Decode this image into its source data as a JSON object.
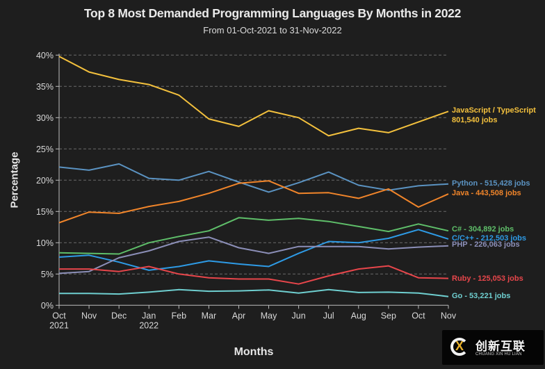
{
  "chart_data": {
    "type": "line",
    "title": "Top 8 Most Demanded Programming Languages By Months in 2022",
    "subtitle": "From 01-Oct-2021 to 31-Nov-2022",
    "xlabel": "Months",
    "ylabel": "Percentage",
    "ylim": [
      0,
      40
    ],
    "yticks": [
      0,
      5,
      10,
      15,
      20,
      25,
      30,
      35,
      40
    ],
    "ytick_labels": [
      "0%",
      "5%",
      "10%",
      "15%",
      "20%",
      "25%",
      "30%",
      "35%",
      "40%"
    ],
    "grid": "horizontal-dashed",
    "categories": [
      "Oct",
      "Nov",
      "Dec",
      "Jan",
      "Feb",
      "Mar",
      "Apr",
      "May",
      "Jun",
      "Jul",
      "Aug",
      "Sep",
      "Oct",
      "Nov"
    ],
    "category_sublabels": [
      "2021",
      "",
      "",
      "2022",
      "",
      "",
      "",
      "",
      "",
      "",
      "",
      "",
      "",
      ""
    ],
    "legend": "direct-labels-right",
    "series": [
      {
        "name": "JavaScript / TypeScript",
        "label": "JavaScript / TypeScript",
        "label2": "801,540 jobs",
        "color": "#f4c13d",
        "values": [
          39.8,
          37.3,
          36.1,
          35.3,
          33.6,
          29.8,
          28.6,
          31.1,
          30.0,
          27.1,
          28.3,
          27.6,
          29.3,
          31.0
        ]
      },
      {
        "name": "Python",
        "label": "Python - 515,428 jobs",
        "color": "#5b93c2",
        "values": [
          22.1,
          21.6,
          22.6,
          20.3,
          20.0,
          21.4,
          19.7,
          18.1,
          19.6,
          21.3,
          19.2,
          18.4,
          19.1,
          19.4
        ]
      },
      {
        "name": "Java",
        "label": "Java - 443,508 jobs",
        "color": "#f1852a",
        "values": [
          13.2,
          14.9,
          14.7,
          15.8,
          16.6,
          17.9,
          19.5,
          19.9,
          17.9,
          18.0,
          17.1,
          18.6,
          15.7,
          17.8
        ]
      },
      {
        "name": "C#",
        "label": "C# - 304,892 jobs",
        "color": "#5fbf6a",
        "values": [
          8.4,
          8.3,
          8.2,
          10.0,
          11.0,
          11.9,
          14.0,
          13.6,
          13.9,
          13.4,
          12.6,
          11.8,
          13.0,
          11.9
        ]
      },
      {
        "name": "C/C++",
        "label": "C/C++ - 212,503 jobs",
        "color": "#2e9be6",
        "values": [
          7.7,
          8.0,
          6.9,
          5.6,
          6.2,
          7.1,
          6.6,
          6.2,
          8.3,
          10.2,
          10.0,
          10.7,
          12.1,
          10.6
        ]
      },
      {
        "name": "PHP",
        "label": "PHP - 226,063 jobs",
        "color": "#8c8fb8",
        "values": [
          5.1,
          5.4,
          7.6,
          8.7,
          10.2,
          10.9,
          9.2,
          8.3,
          9.4,
          9.4,
          9.4,
          9.0,
          9.3,
          9.5
        ]
      },
      {
        "name": "Ruby",
        "label": "Ruby - 125,053 jobs",
        "color": "#e8464b",
        "values": [
          5.8,
          5.8,
          5.4,
          6.2,
          5.0,
          4.4,
          4.2,
          4.2,
          3.4,
          4.7,
          5.8,
          6.3,
          4.4,
          4.3
        ]
      },
      {
        "name": "Go",
        "label": "Go - 53,221 jobs",
        "color": "#6fcfd0",
        "values": [
          1.9,
          1.9,
          1.8,
          2.1,
          2.5,
          2.25,
          2.3,
          2.45,
          1.95,
          2.5,
          2.05,
          2.1,
          1.95,
          1.4
        ]
      }
    ]
  },
  "watermark": {
    "brand_cn": "创新互联",
    "brand_en": "CHUANG XIN HU LIAN",
    "logo_glyph": "X"
  }
}
